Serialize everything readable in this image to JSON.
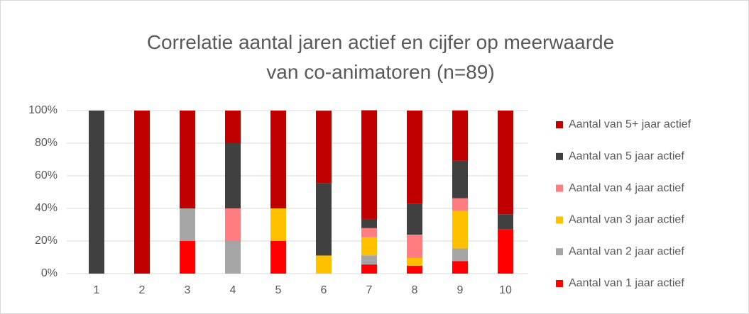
{
  "chart_data": {
    "type": "stacked_bar",
    "title": "Correlatie aantal jaren actief en cijfer op meerwaarde van co-animatoren (n=89)",
    "categories": [
      "1",
      "2",
      "3",
      "4",
      "5",
      "6",
      "7",
      "8",
      "9",
      "10"
    ],
    "series": [
      {
        "name": "Aantal van 1 jaar actief",
        "color": "#ff0000",
        "values": [
          0,
          0,
          20,
          0,
          20,
          0,
          5.6,
          4.8,
          7.7,
          27.3
        ]
      },
      {
        "name": "Aantal van 2 jaar actief",
        "color": "#a5a5a5",
        "values": [
          0,
          0,
          20,
          20,
          0,
          0,
          5.6,
          0,
          7.7,
          0
        ]
      },
      {
        "name": "Aantal van 3 jaar actief",
        "color": "#ffc000",
        "values": [
          0,
          0,
          0,
          0,
          20,
          11.1,
          11.1,
          4.8,
          23.1,
          0
        ]
      },
      {
        "name": "Aantal van 4 jaar actief",
        "color": "#ff7c80",
        "values": [
          0,
          0,
          0,
          20,
          0,
          0,
          5.6,
          14.3,
          7.7,
          0
        ]
      },
      {
        "name": "Aantal van 5 jaar actief",
        "color": "#404040",
        "values": [
          100,
          0,
          0,
          40,
          0,
          44.4,
          5.6,
          19.0,
          23.1,
          9.1
        ]
      },
      {
        "name": "Aantal van 5+ jaar actief",
        "color": "#c00000",
        "values": [
          0,
          100,
          60,
          20,
          60,
          44.4,
          66.7,
          57.1,
          30.8,
          63.6
        ]
      }
    ],
    "ylim": [
      0,
      100
    ],
    "yticks": [
      {
        "value": 0,
        "label": "0%"
      },
      {
        "value": 20,
        "label": "20%"
      },
      {
        "value": 40,
        "label": "40%"
      },
      {
        "value": 60,
        "label": "60%"
      },
      {
        "value": 80,
        "label": "80%"
      },
      {
        "value": 100,
        "label": "100%"
      }
    ],
    "grid": true,
    "legend": "right"
  }
}
